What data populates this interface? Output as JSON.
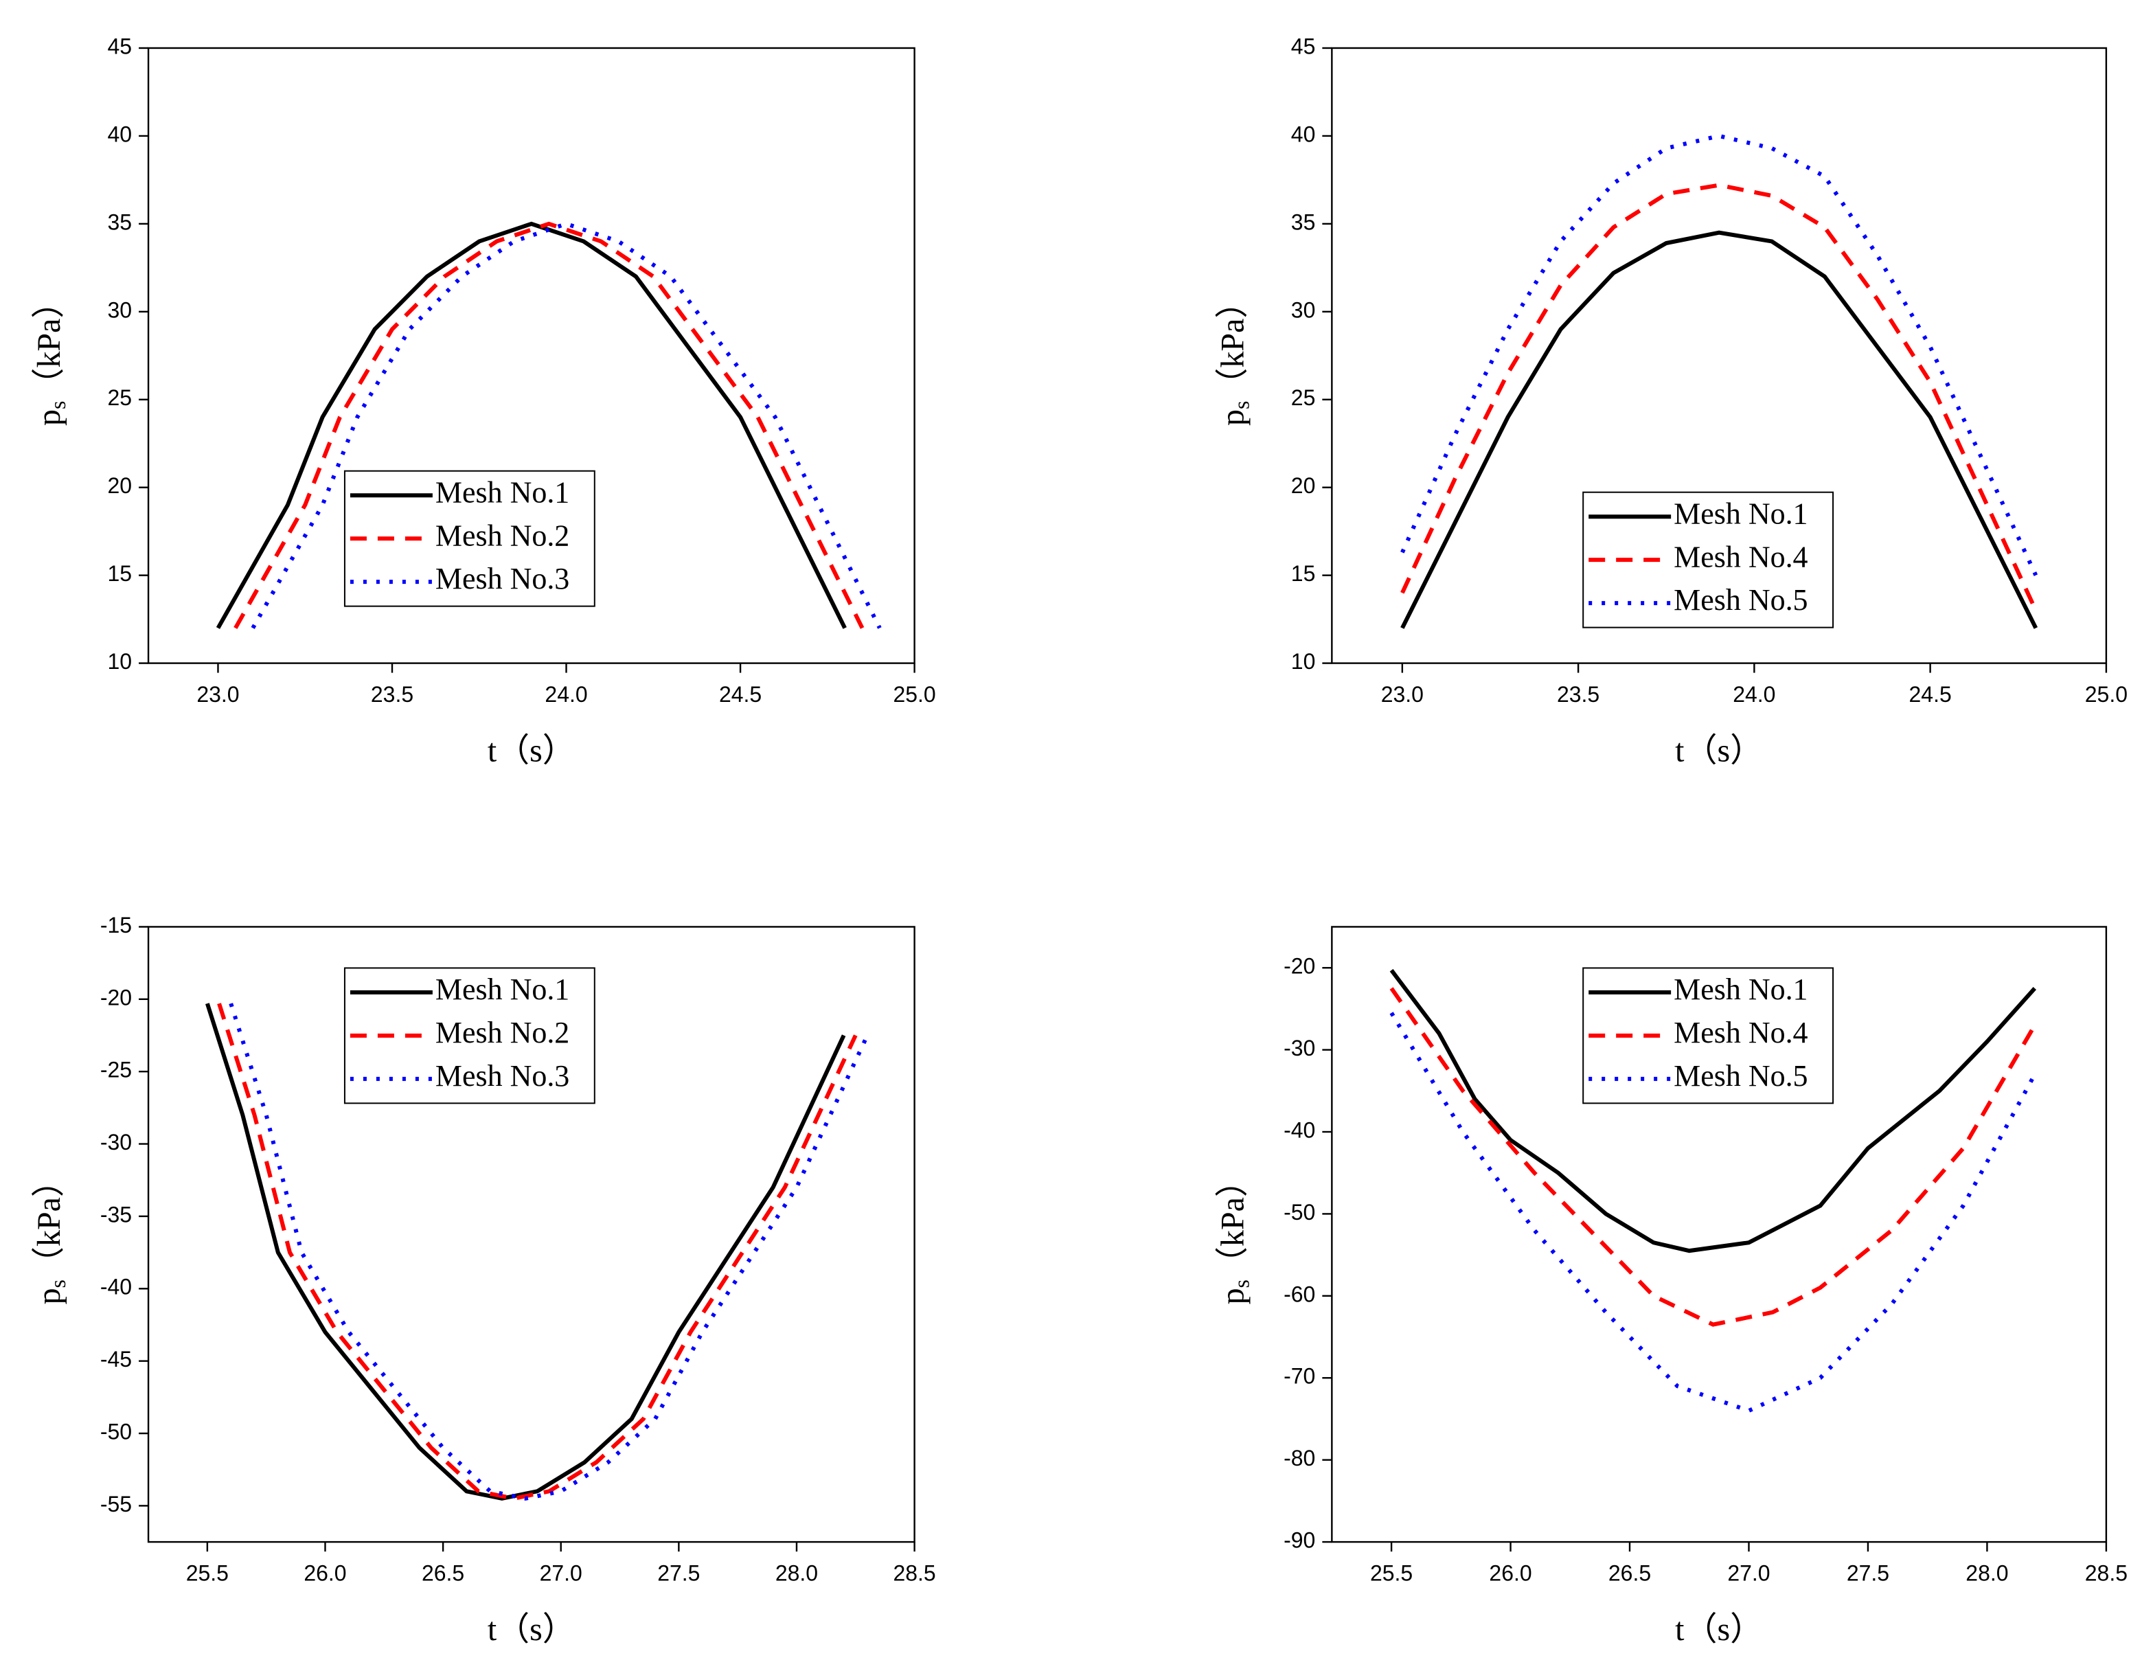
{
  "chart_data": [
    {
      "type": "line",
      "xlabel": "t（s）",
      "ylabel_parts": [
        "p",
        "s",
        "（kPa）"
      ],
      "xlim": [
        22.8,
        25.0
      ],
      "xticks": [
        {
          "value": 23,
          "label": "23.0"
        },
        23.5,
        {
          "value": 24,
          "label": "24.0"
        },
        24.5,
        {
          "value": 25,
          "label": "25.0"
        }
      ],
      "ylim": [
        10,
        45
      ],
      "yticks": [
        10,
        15,
        20,
        25,
        30,
        35,
        40,
        45
      ],
      "legend": "center",
      "series": [
        {
          "name": "Mesh No.1",
          "color": "#000000",
          "style": "solid",
          "x": [
            23.0,
            23.2,
            23.3,
            23.45,
            23.6,
            23.75,
            23.9,
            24.05,
            24.2,
            24.35,
            24.5,
            24.65,
            24.8
          ],
          "values": [
            12,
            19,
            24,
            29,
            32,
            34,
            35,
            34,
            32,
            28,
            24,
            18,
            12
          ]
        },
        {
          "name": "Mesh No.2",
          "color": "#ff0000",
          "style": "dash",
          "x": [
            23.05,
            23.25,
            23.35,
            23.5,
            23.65,
            23.8,
            23.95,
            24.1,
            24.25,
            24.4,
            24.55,
            24.7,
            24.85
          ],
          "values": [
            12,
            19,
            24,
            29,
            32,
            34,
            35,
            34,
            32,
            28,
            24,
            18,
            12
          ]
        },
        {
          "name": "Mesh No.3",
          "color": "#0000ff",
          "style": "dot",
          "x": [
            23.1,
            23.3,
            23.4,
            23.55,
            23.7,
            23.85,
            24.0,
            24.15,
            24.3,
            24.45,
            24.6,
            24.75,
            24.9
          ],
          "values": [
            12,
            19,
            24,
            29,
            32,
            34,
            35,
            34,
            32,
            28,
            24,
            18,
            12
          ]
        }
      ]
    },
    {
      "type": "line",
      "xlabel": "t（s）",
      "ylabel_parts": [
        "p",
        "s",
        "（kPa）"
      ],
      "xlim": [
        22.8,
        25.0
      ],
      "xticks": [
        {
          "value": 23,
          "label": "23.0"
        },
        23.5,
        {
          "value": 24,
          "label": "24.0"
        },
        24.5,
        {
          "value": 25,
          "label": "25.0"
        }
      ],
      "ylim": [
        10,
        45
      ],
      "yticks": [
        10,
        15,
        20,
        25,
        30,
        35,
        40,
        45
      ],
      "legend": "lower center",
      "series": [
        {
          "name": "Mesh No.1",
          "color": "#000000",
          "style": "solid",
          "x": [
            23.0,
            23.15,
            23.3,
            23.45,
            23.6,
            23.75,
            23.9,
            24.05,
            24.2,
            24.35,
            24.5,
            24.65,
            24.8
          ],
          "values": [
            12,
            18,
            24,
            29,
            32.2,
            33.9,
            34.5,
            34,
            32,
            28,
            24,
            18,
            12
          ]
        },
        {
          "name": "Mesh No.4",
          "color": "#ff0000",
          "style": "dash",
          "x": [
            23.0,
            23.15,
            23.3,
            23.45,
            23.6,
            23.75,
            23.9,
            24.05,
            24.2,
            24.35,
            24.5,
            24.65,
            24.8
          ],
          "values": [
            14,
            20.5,
            26.5,
            31.5,
            34.8,
            36.7,
            37.2,
            36.6,
            34.8,
            30.7,
            26,
            19.5,
            13
          ]
        },
        {
          "name": "Mesh No.5",
          "color": "#0000ff",
          "style": "dot",
          "x": [
            23.0,
            23.15,
            23.3,
            23.45,
            23.6,
            23.75,
            23.9,
            24.05,
            24.2,
            24.35,
            24.5,
            24.65,
            24.8
          ],
          "values": [
            16.3,
            23,
            29,
            34,
            37.3,
            39.3,
            40,
            39.3,
            37.7,
            33.2,
            28,
            21.5,
            15
          ]
        }
      ]
    },
    {
      "type": "line",
      "xlabel": "t（s）",
      "ylabel_parts": [
        "p",
        "s",
        "（kPa）"
      ],
      "xlim": [
        25.25,
        28.5
      ],
      "xticks": [
        25.5,
        {
          "value": 26,
          "label": "26.0"
        },
        26.5,
        {
          "value": 27,
          "label": "27.0"
        },
        27.5,
        {
          "value": 28,
          "label": "28.0"
        },
        28.5
      ],
      "ylim": [
        -57.5,
        -15
      ],
      "yticks": [
        -55,
        -50,
        -45,
        -40,
        -35,
        -30,
        -25,
        -20,
        -15
      ],
      "legend": "upper center",
      "series": [
        {
          "name": "Mesh No.1",
          "color": "#000000",
          "style": "solid",
          "x": [
            25.5,
            25.65,
            25.8,
            26.0,
            26.2,
            26.4,
            26.6,
            26.75,
            26.9,
            27.1,
            27.3,
            27.5,
            27.7,
            27.9,
            28.2
          ],
          "values": [
            -20.3,
            -28,
            -37.5,
            -43,
            -47,
            -51,
            -54,
            -54.5,
            -54,
            -52,
            -49,
            -43,
            -38,
            -33,
            -22.5
          ]
        },
        {
          "name": "Mesh No.2",
          "color": "#ff0000",
          "style": "dash",
          "x": [
            25.55,
            25.7,
            25.85,
            26.05,
            26.25,
            26.45,
            26.65,
            26.8,
            26.95,
            27.15,
            27.35,
            27.55,
            27.75,
            27.95,
            28.25
          ],
          "values": [
            -20.3,
            -28,
            -37.5,
            -43,
            -47,
            -51,
            -54,
            -54.5,
            -54,
            -52,
            -49,
            -43,
            -38,
            -33,
            -22.5
          ]
        },
        {
          "name": "Mesh No.3",
          "color": "#0000ff",
          "style": "dot",
          "x": [
            25.6,
            25.75,
            25.9,
            26.1,
            26.3,
            26.5,
            26.7,
            26.85,
            27.0,
            27.2,
            27.4,
            27.6,
            27.8,
            28.0,
            28.3
          ],
          "values": [
            -20.3,
            -28,
            -37.5,
            -43,
            -47,
            -51,
            -54,
            -54.5,
            -54,
            -52,
            -49,
            -43,
            -38,
            -33,
            -22.5
          ]
        }
      ]
    },
    {
      "type": "line",
      "xlabel": "t（s）",
      "ylabel_parts": [
        "p",
        "s",
        "（kPa）"
      ],
      "xlim": [
        25.25,
        28.5
      ],
      "xticks": [
        25.5,
        {
          "value": 26,
          "label": "26.0"
        },
        26.5,
        {
          "value": 27,
          "label": "27.0"
        },
        27.5,
        {
          "value": 28,
          "label": "28.0"
        },
        28.5
      ],
      "ylim": [
        -90,
        -15
      ],
      "yticks": [
        -90,
        -80,
        -70,
        -60,
        -50,
        -40,
        -30,
        -20
      ],
      "legend": "upper center",
      "series": [
        {
          "name": "Mesh No.1",
          "color": "#000000",
          "style": "solid",
          "x": [
            25.5,
            25.7,
            25.85,
            26.0,
            26.2,
            26.4,
            26.6,
            26.75,
            27.0,
            27.3,
            27.5,
            27.8,
            28.0,
            28.2
          ],
          "values": [
            -20.3,
            -28,
            -36,
            -41,
            -45,
            -50,
            -53.5,
            -54.5,
            -53.5,
            -49,
            -42,
            -35,
            -29,
            -22.5
          ]
        },
        {
          "name": "Mesh No.4",
          "color": "#ff0000",
          "style": "dash",
          "x": [
            25.5,
            25.8,
            26.1,
            26.4,
            26.6,
            26.85,
            27.1,
            27.3,
            27.6,
            27.9,
            28.2
          ],
          "values": [
            -22.5,
            -35,
            -45,
            -54,
            -60,
            -63.5,
            -62,
            -59,
            -52,
            -42,
            -27
          ]
        },
        {
          "name": "Mesh No.5",
          "color": "#0000ff",
          "style": "dot",
          "x": [
            25.5,
            25.8,
            26.1,
            26.4,
            26.7,
            27.0,
            27.3,
            27.6,
            27.9,
            28.2
          ],
          "values": [
            -25.5,
            -40,
            -52,
            -62,
            -71,
            -74,
            -70,
            -61,
            -49,
            -33
          ]
        }
      ]
    }
  ]
}
